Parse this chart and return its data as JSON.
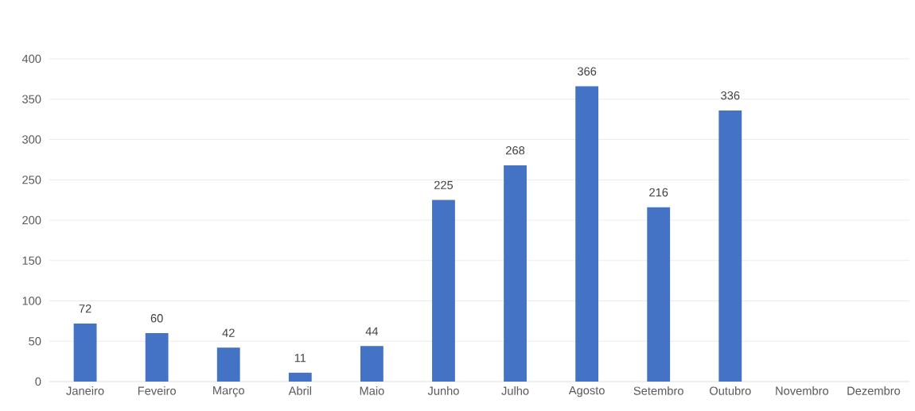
{
  "chart_data": {
    "type": "bar",
    "categories": [
      "Janeiro",
      "Feveiro",
      "Março",
      "Abril",
      "Maio",
      "Junho",
      "Julho",
      "Agosto",
      "Setembro",
      "Outubro",
      "Novembro",
      "Dezembro"
    ],
    "values": [
      72,
      60,
      42,
      11,
      44,
      225,
      268,
      366,
      216,
      336,
      null,
      null
    ],
    "color": "#4472c4",
    "ylim": [
      0,
      400
    ],
    "yticks": [
      0,
      50,
      100,
      150,
      200,
      250,
      300,
      350,
      400
    ],
    "grid": "y",
    "data_labels": true
  }
}
